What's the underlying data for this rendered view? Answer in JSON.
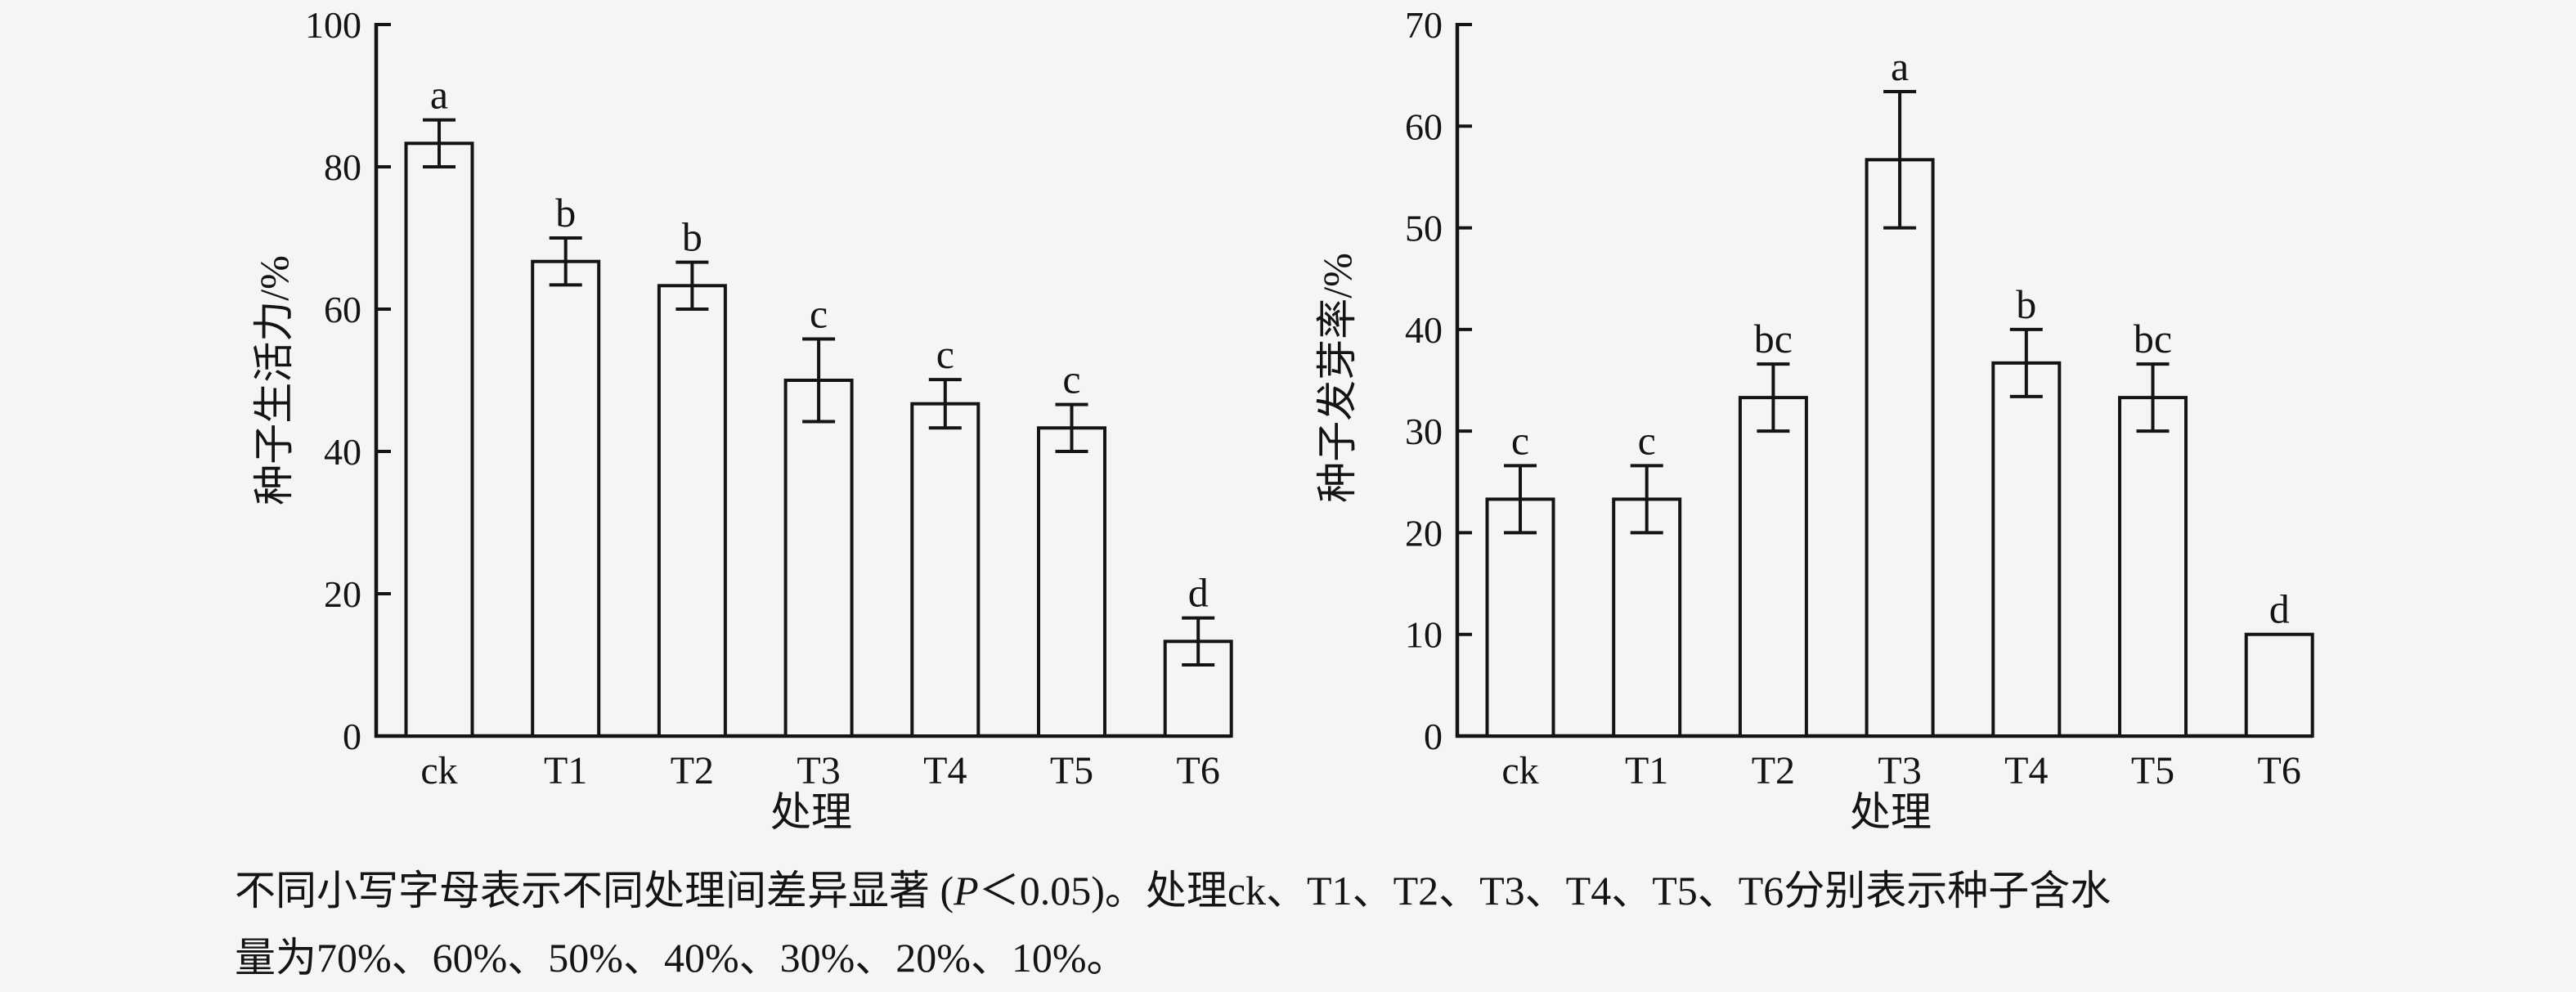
{
  "ink": "#141414",
  "background": "#f5f5f5",
  "chart_data": [
    {
      "type": "bar",
      "title": "",
      "ylabel": "种子生活力/%",
      "xlabel": "处理",
      "categories": [
        "ck",
        "T1",
        "T2",
        "T3",
        "T4",
        "T5",
        "T6"
      ],
      "values": [
        83.3,
        66.7,
        63.3,
        50.0,
        46.7,
        43.3,
        13.3
      ],
      "errors": [
        3.3,
        3.3,
        3.3,
        5.8,
        3.4,
        3.3,
        3.3
      ],
      "sig_letters": [
        "a",
        "b",
        "b",
        "c",
        "c",
        "c",
        "d"
      ],
      "ylim": [
        0,
        100
      ],
      "ytick_step": 20,
      "grid": false,
      "legend": "none",
      "bar_fill": "#f5f5f5",
      "bar_edge": "#141414"
    },
    {
      "type": "bar",
      "title": "",
      "ylabel": "种子发芽率/%",
      "xlabel": "处理",
      "categories": [
        "ck",
        "T1",
        "T2",
        "T3",
        "T4",
        "T5",
        "T6"
      ],
      "values": [
        23.3,
        23.3,
        33.3,
        56.7,
        36.7,
        33.3,
        10.0
      ],
      "errors": [
        3.3,
        3.3,
        3.3,
        6.7,
        3.3,
        3.3,
        0
      ],
      "sig_letters": [
        "c",
        "c",
        "bc",
        "a",
        "b",
        "bc",
        "d"
      ],
      "ylim": [
        0,
        70
      ],
      "ytick_step": 10,
      "grid": false,
      "legend": "none",
      "bar_fill": "#f5f5f5",
      "bar_edge": "#141414"
    }
  ],
  "caption": {
    "line1_pre": "不同小写字母表示不同处理间差异显著 (",
    "p_italic": "P",
    "line1_post": "＜0.05)。处理ck、T1、T2、T3、T4、T5、T6分别表示种子含水",
    "line2": "量为70%、60%、50%、40%、30%、20%、10%。"
  }
}
